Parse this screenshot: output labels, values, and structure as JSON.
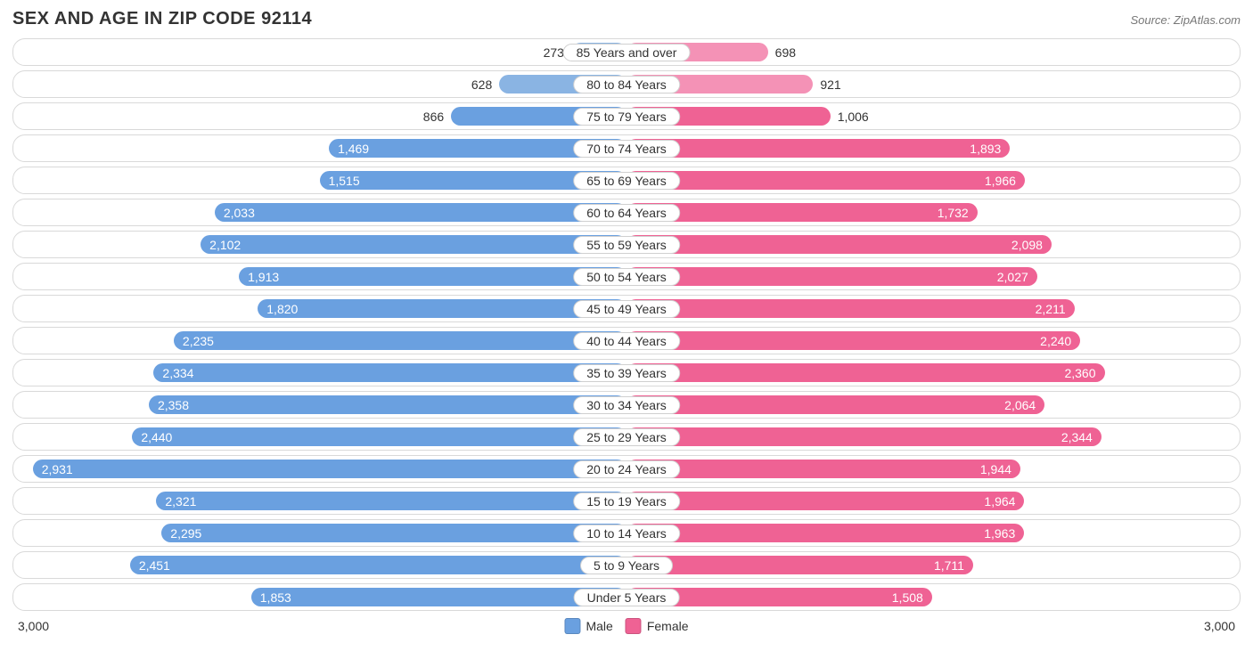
{
  "title": "SEX AND AGE IN ZIP CODE 92114",
  "source": "Source: ZipAtlas.com",
  "chart": {
    "type": "population-pyramid",
    "axis_max": 3000,
    "axis_label": "3,000",
    "male_color": "#6aa0e0",
    "female_color": "#ef6294",
    "male_colors_override": {
      "85 Years and over": "#8ab4e3",
      "80 to 84 Years": "#8ab4e3"
    },
    "female_colors_override": {
      "85 Years and over": "#f492b6",
      "80 to 84 Years": "#f492b6"
    },
    "row_border_color": "#d9d9d9",
    "background_color": "#ffffff",
    "label_inside_threshold": 1200,
    "legend": {
      "male": "Male",
      "female": "Female"
    },
    "categories": [
      {
        "label": "85 Years and over",
        "male": 273,
        "female": 698
      },
      {
        "label": "80 to 84 Years",
        "male": 628,
        "female": 921
      },
      {
        "label": "75 to 79 Years",
        "male": 866,
        "female": 1006
      },
      {
        "label": "70 to 74 Years",
        "male": 1469,
        "female": 1893
      },
      {
        "label": "65 to 69 Years",
        "male": 1515,
        "female": 1966
      },
      {
        "label": "60 to 64 Years",
        "male": 2033,
        "female": 1732
      },
      {
        "label": "55 to 59 Years",
        "male": 2102,
        "female": 2098
      },
      {
        "label": "50 to 54 Years",
        "male": 1913,
        "female": 2027
      },
      {
        "label": "45 to 49 Years",
        "male": 1820,
        "female": 2211
      },
      {
        "label": "40 to 44 Years",
        "male": 2235,
        "female": 2240
      },
      {
        "label": "35 to 39 Years",
        "male": 2334,
        "female": 2360
      },
      {
        "label": "30 to 34 Years",
        "male": 2358,
        "female": 2064
      },
      {
        "label": "25 to 29 Years",
        "male": 2440,
        "female": 2344
      },
      {
        "label": "20 to 24 Years",
        "male": 2931,
        "female": 1944
      },
      {
        "label": "15 to 19 Years",
        "male": 2321,
        "female": 1964
      },
      {
        "label": "10 to 14 Years",
        "male": 2295,
        "female": 1963
      },
      {
        "label": "5 to 9 Years",
        "male": 2451,
        "female": 1711
      },
      {
        "label": "Under 5 Years",
        "male": 1853,
        "female": 1508
      }
    ]
  }
}
